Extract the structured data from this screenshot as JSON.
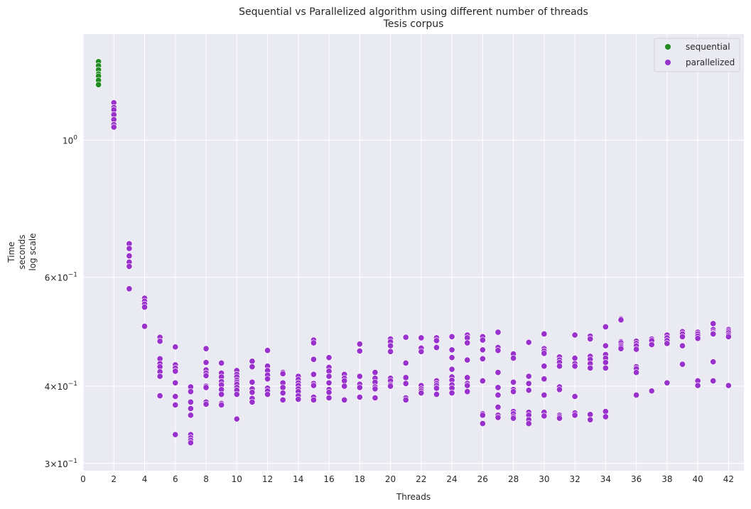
{
  "chart_data": {
    "type": "scatter",
    "title": "Sequential vs Parallelized algorithm using different number of threads",
    "subtitle": "Tesis corpus",
    "xlabel": "Threads",
    "ylabel_lines": [
      "Time",
      "seconds",
      "log scale"
    ],
    "xlim": [
      0,
      43
    ],
    "ylim": [
      0.292,
      1.485
    ],
    "yscale": "log",
    "grid": true,
    "legend_position": "top-right",
    "x_ticks": [
      "0",
      "2",
      "4",
      "6",
      "8",
      "10",
      "12",
      "14",
      "16",
      "18",
      "20",
      "22",
      "24",
      "26",
      "28",
      "30",
      "32",
      "34",
      "36",
      "38",
      "40",
      "42"
    ],
    "y_ticks": [
      {
        "value": 1.0,
        "base": "10",
        "exp": "0"
      },
      {
        "value": 0.6,
        "base": "6×10",
        "exp": "−1"
      },
      {
        "value": 0.4,
        "base": "4×10",
        "exp": "−1"
      },
      {
        "value": 0.3,
        "base": "3×10",
        "exp": "−1"
      }
    ],
    "colors": {
      "background": "#eaeaf2",
      "grid": "#ffffff",
      "sequential": "#228b22",
      "parallelized": "#9932cc"
    },
    "series": [
      {
        "name": "sequential",
        "points": [
          [
            1,
            1.34
          ],
          [
            1,
            1.32
          ],
          [
            1,
            1.3
          ],
          [
            1,
            1.28
          ],
          [
            1,
            1.27
          ],
          [
            1,
            1.25
          ],
          [
            1,
            1.23
          ]
        ]
      },
      {
        "name": "parallelized",
        "points": [
          [
            2,
            1.15
          ],
          [
            2,
            1.13
          ],
          [
            2,
            1.12
          ],
          [
            2,
            1.1
          ],
          [
            2,
            1.08
          ],
          [
            2,
            1.06
          ],
          [
            2,
            1.05
          ],
          [
            3,
            0.68
          ],
          [
            3,
            0.668
          ],
          [
            3,
            0.65
          ],
          [
            3,
            0.635
          ],
          [
            3,
            0.625
          ],
          [
            3,
            0.575
          ],
          [
            4,
            0.555
          ],
          [
            4,
            0.549
          ],
          [
            4,
            0.543
          ],
          [
            4,
            0.537
          ],
          [
            4,
            0.5
          ],
          [
            5,
            0.48
          ],
          [
            5,
            0.473
          ],
          [
            5,
            0.443
          ],
          [
            5,
            0.435
          ],
          [
            5,
            0.43
          ],
          [
            5,
            0.422
          ],
          [
            5,
            0.415
          ],
          [
            5,
            0.386
          ],
          [
            6,
            0.463
          ],
          [
            6,
            0.433
          ],
          [
            6,
            0.428
          ],
          [
            6,
            0.423
          ],
          [
            6,
            0.405
          ],
          [
            6,
            0.385
          ],
          [
            6,
            0.373
          ],
          [
            6,
            0.334
          ],
          [
            7,
            0.399
          ],
          [
            7,
            0.392
          ],
          [
            7,
            0.377
          ],
          [
            7,
            0.368
          ],
          [
            7,
            0.359
          ],
          [
            7,
            0.334
          ],
          [
            7,
            0.33
          ],
          [
            7,
            0.327
          ],
          [
            7,
            0.324
          ],
          [
            8,
            0.46
          ],
          [
            8,
            0.437
          ],
          [
            8,
            0.425
          ],
          [
            8,
            0.42
          ],
          [
            8,
            0.416
          ],
          [
            8,
            0.4
          ],
          [
            8,
            0.398
          ],
          [
            8,
            0.377
          ],
          [
            8,
            0.374
          ],
          [
            9,
            0.436
          ],
          [
            9,
            0.42
          ],
          [
            9,
            0.414
          ],
          [
            9,
            0.407
          ],
          [
            9,
            0.402
          ],
          [
            9,
            0.395
          ],
          [
            9,
            0.388
          ],
          [
            9,
            0.375
          ],
          [
            9,
            0.373
          ],
          [
            10,
            0.424
          ],
          [
            10,
            0.418
          ],
          [
            10,
            0.414
          ],
          [
            10,
            0.409
          ],
          [
            10,
            0.406
          ],
          [
            10,
            0.403
          ],
          [
            10,
            0.398
          ],
          [
            10,
            0.394
          ],
          [
            10,
            0.388
          ],
          [
            10,
            0.354
          ],
          [
            11,
            0.439
          ],
          [
            11,
            0.43
          ],
          [
            11,
            0.406
          ],
          [
            11,
            0.396
          ],
          [
            11,
            0.391
          ],
          [
            11,
            0.382
          ],
          [
            11,
            0.377
          ],
          [
            12,
            0.457
          ],
          [
            12,
            0.431
          ],
          [
            12,
            0.424
          ],
          [
            12,
            0.417
          ],
          [
            12,
            0.411
          ],
          [
            12,
            0.397
          ],
          [
            12,
            0.393
          ],
          [
            12,
            0.388
          ],
          [
            13,
            0.421
          ],
          [
            13,
            0.419
          ],
          [
            13,
            0.405
          ],
          [
            13,
            0.398
          ],
          [
            13,
            0.39
          ],
          [
            13,
            0.38
          ],
          [
            14,
            0.415
          ],
          [
            14,
            0.41
          ],
          [
            14,
            0.405
          ],
          [
            14,
            0.401
          ],
          [
            14,
            0.396
          ],
          [
            14,
            0.392
          ],
          [
            14,
            0.386
          ],
          [
            14,
            0.381
          ],
          [
            15,
            0.475
          ],
          [
            15,
            0.47
          ],
          [
            15,
            0.442
          ],
          [
            15,
            0.418
          ],
          [
            15,
            0.404
          ],
          [
            15,
            0.401
          ],
          [
            15,
            0.384
          ],
          [
            15,
            0.38
          ],
          [
            16,
            0.445
          ],
          [
            16,
            0.429
          ],
          [
            16,
            0.423
          ],
          [
            16,
            0.415
          ],
          [
            16,
            0.405
          ],
          [
            16,
            0.395
          ],
          [
            16,
            0.391
          ],
          [
            16,
            0.383
          ],
          [
            17,
            0.418
          ],
          [
            17,
            0.412
          ],
          [
            17,
            0.408
          ],
          [
            17,
            0.4
          ],
          [
            17,
            0.38
          ],
          [
            18,
            0.468
          ],
          [
            18,
            0.456
          ],
          [
            18,
            0.415
          ],
          [
            18,
            0.403
          ],
          [
            18,
            0.398
          ],
          [
            18,
            0.384
          ],
          [
            19,
            0.421
          ],
          [
            19,
            0.412
          ],
          [
            19,
            0.406
          ],
          [
            19,
            0.399
          ],
          [
            19,
            0.396
          ],
          [
            19,
            0.383
          ],
          [
            20,
            0.477
          ],
          [
            20,
            0.472
          ],
          [
            20,
            0.465
          ],
          [
            20,
            0.455
          ],
          [
            20,
            0.412
          ],
          [
            20,
            0.408
          ],
          [
            20,
            0.402
          ],
          [
            20,
            0.4
          ],
          [
            21,
            0.48
          ],
          [
            21,
            0.436
          ],
          [
            21,
            0.413
          ],
          [
            21,
            0.404
          ],
          [
            21,
            0.383
          ],
          [
            21,
            0.38
          ],
          [
            22,
            0.479
          ],
          [
            22,
            0.461
          ],
          [
            22,
            0.455
          ],
          [
            22,
            0.401
          ],
          [
            22,
            0.396
          ],
          [
            22,
            0.393
          ],
          [
            22,
            0.39
          ],
          [
            23,
            0.479
          ],
          [
            23,
            0.474
          ],
          [
            23,
            0.462
          ],
          [
            23,
            0.408
          ],
          [
            23,
            0.404
          ],
          [
            23,
            0.401
          ],
          [
            23,
            0.397
          ],
          [
            23,
            0.388
          ],
          [
            24,
            0.481
          ],
          [
            24,
            0.458
          ],
          [
            24,
            0.445
          ],
          [
            24,
            0.426
          ],
          [
            24,
            0.414
          ],
          [
            24,
            0.409
          ],
          [
            24,
            0.402
          ],
          [
            24,
            0.397
          ],
          [
            24,
            0.39
          ],
          [
            25,
            0.484
          ],
          [
            25,
            0.479
          ],
          [
            25,
            0.47
          ],
          [
            25,
            0.441
          ],
          [
            25,
            0.413
          ],
          [
            25,
            0.404
          ],
          [
            25,
            0.401
          ],
          [
            25,
            0.392
          ],
          [
            26,
            0.481
          ],
          [
            26,
            0.475
          ],
          [
            26,
            0.458
          ],
          [
            26,
            0.443
          ],
          [
            26,
            0.408
          ],
          [
            26,
            0.361
          ],
          [
            26,
            0.359
          ],
          [
            26,
            0.348
          ],
          [
            27,
            0.489
          ],
          [
            27,
            0.462
          ],
          [
            27,
            0.457
          ],
          [
            27,
            0.421
          ],
          [
            27,
            0.398
          ],
          [
            27,
            0.387
          ],
          [
            27,
            0.37
          ],
          [
            27,
            0.359
          ],
          [
            27,
            0.356
          ],
          [
            28,
            0.451
          ],
          [
            28,
            0.444
          ],
          [
            28,
            0.406
          ],
          [
            28,
            0.395
          ],
          [
            28,
            0.392
          ],
          [
            28,
            0.364
          ],
          [
            28,
            0.361
          ],
          [
            28,
            0.357
          ],
          [
            28,
            0.355
          ],
          [
            29,
            0.471
          ],
          [
            29,
            0.415
          ],
          [
            29,
            0.404
          ],
          [
            29,
            0.394
          ],
          [
            29,
            0.363
          ],
          [
            29,
            0.359
          ],
          [
            29,
            0.353
          ],
          [
            29,
            0.348
          ],
          [
            30,
            0.486
          ],
          [
            30,
            0.46
          ],
          [
            30,
            0.456
          ],
          [
            30,
            0.452
          ],
          [
            30,
            0.431
          ],
          [
            30,
            0.411
          ],
          [
            30,
            0.387
          ],
          [
            30,
            0.363
          ],
          [
            30,
            0.358
          ],
          [
            31,
            0.446
          ],
          [
            31,
            0.441
          ],
          [
            31,
            0.437
          ],
          [
            31,
            0.431
          ],
          [
            31,
            0.399
          ],
          [
            31,
            0.395
          ],
          [
            31,
            0.359
          ],
          [
            31,
            0.357
          ],
          [
            31,
            0.355
          ],
          [
            32,
            0.484
          ],
          [
            32,
            0.444
          ],
          [
            32,
            0.435
          ],
          [
            32,
            0.431
          ],
          [
            32,
            0.385
          ],
          [
            32,
            0.362
          ],
          [
            32,
            0.359
          ],
          [
            33,
            0.482
          ],
          [
            33,
            0.477
          ],
          [
            33,
            0.447
          ],
          [
            33,
            0.442
          ],
          [
            33,
            0.435
          ],
          [
            33,
            0.428
          ],
          [
            33,
            0.36
          ],
          [
            33,
            0.353
          ],
          [
            34,
            0.499
          ],
          [
            34,
            0.465
          ],
          [
            34,
            0.45
          ],
          [
            34,
            0.444
          ],
          [
            34,
            0.437
          ],
          [
            34,
            0.428
          ],
          [
            34,
            0.364
          ],
          [
            34,
            0.357
          ],
          [
            35,
            0.514
          ],
          [
            35,
            0.512
          ],
          [
            35,
            0.472
          ],
          [
            35,
            0.47
          ],
          [
            35,
            0.466
          ],
          [
            35,
            0.463
          ],
          [
            35,
            0.46
          ],
          [
            36,
            0.473
          ],
          [
            36,
            0.469
          ],
          [
            36,
            0.465
          ],
          [
            36,
            0.459
          ],
          [
            36,
            0.43
          ],
          [
            36,
            0.427
          ],
          [
            36,
            0.421
          ],
          [
            36,
            0.387
          ],
          [
            37,
            0.477
          ],
          [
            37,
            0.474
          ],
          [
            37,
            0.467
          ],
          [
            37,
            0.393
          ],
          [
            38,
            0.484
          ],
          [
            38,
            0.479
          ],
          [
            38,
            0.474
          ],
          [
            38,
            0.469
          ],
          [
            38,
            0.405
          ],
          [
            39,
            0.49
          ],
          [
            39,
            0.486
          ],
          [
            39,
            0.481
          ],
          [
            39,
            0.465
          ],
          [
            39,
            0.434
          ],
          [
            40,
            0.489
          ],
          [
            40,
            0.486
          ],
          [
            40,
            0.482
          ],
          [
            40,
            0.478
          ],
          [
            40,
            0.408
          ],
          [
            40,
            0.401
          ],
          [
            41,
            0.505
          ],
          [
            41,
            0.494
          ],
          [
            41,
            0.49
          ],
          [
            41,
            0.487
          ],
          [
            41,
            0.486
          ],
          [
            41,
            0.438
          ],
          [
            41,
            0.408
          ],
          [
            42,
            0.494
          ],
          [
            42,
            0.491
          ],
          [
            42,
            0.488
          ],
          [
            42,
            0.484
          ],
          [
            42,
            0.481
          ],
          [
            42,
            0.401
          ]
        ]
      }
    ]
  }
}
